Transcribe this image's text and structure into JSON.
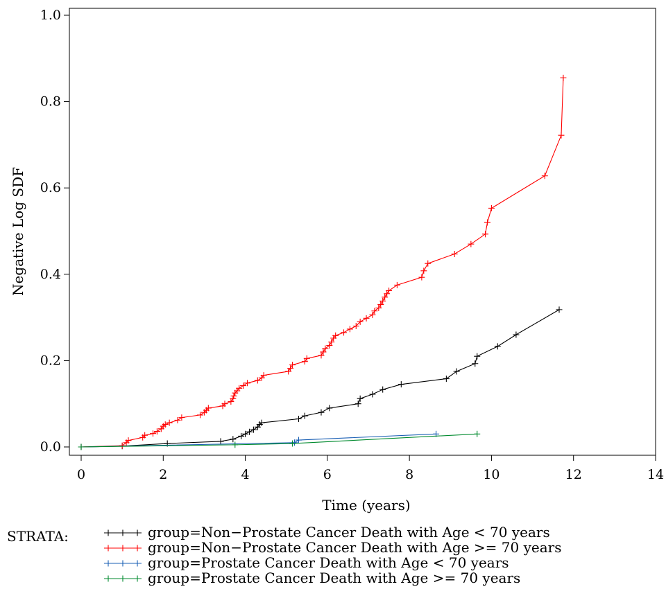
{
  "chart_data": {
    "type": "line",
    "title": "",
    "xlabel": "Time (years)",
    "ylabel": "Negative Log SDF",
    "xlim": [
      0,
      14
    ],
    "ylim": [
      0,
      1.0
    ],
    "x_ticks": [
      0,
      2,
      4,
      6,
      8,
      10,
      12,
      14
    ],
    "y_ticks": [
      0.0,
      0.2,
      0.4,
      0.6,
      0.8,
      1.0
    ],
    "x_tick_labels": [
      "0",
      "2",
      "4",
      "6",
      "8",
      "10",
      "12",
      "14"
    ],
    "y_tick_labels": [
      "0.0",
      "0.2",
      "0.4",
      "0.6",
      "0.8",
      "1.0"
    ],
    "grid": false,
    "legend": {
      "placement": "bottom",
      "title": "STRATA:"
    },
    "series": [
      {
        "name": "group=Non−Prostate Cancer Death with Age < 70 years",
        "color": "#000000",
        "points": [
          [
            0,
            0
          ],
          [
            1.0,
            0.002
          ],
          [
            2.1,
            0.008
          ],
          [
            3.4,
            0.013
          ],
          [
            3.7,
            0.018
          ],
          [
            3.9,
            0.025
          ],
          [
            4.0,
            0.03
          ],
          [
            4.1,
            0.035
          ],
          [
            4.2,
            0.04
          ],
          [
            4.3,
            0.046
          ],
          [
            4.35,
            0.052
          ],
          [
            4.4,
            0.056
          ],
          [
            5.3,
            0.065
          ],
          [
            5.45,
            0.072
          ],
          [
            5.85,
            0.08
          ],
          [
            6.05,
            0.09
          ],
          [
            6.75,
            0.1
          ],
          [
            6.8,
            0.112
          ],
          [
            7.1,
            0.122
          ],
          [
            7.35,
            0.133
          ],
          [
            7.8,
            0.145
          ],
          [
            8.9,
            0.158
          ],
          [
            9.15,
            0.175
          ],
          [
            9.6,
            0.193
          ],
          [
            9.65,
            0.21
          ],
          [
            10.15,
            0.233
          ],
          [
            10.6,
            0.26
          ],
          [
            11.65,
            0.318
          ]
        ]
      },
      {
        "name": "group=Non−Prostate Cancer Death with Age >= 70 years",
        "color": "#ff0000",
        "points": [
          [
            0,
            0
          ],
          [
            1.0,
            0.003
          ],
          [
            1.1,
            0.01
          ],
          [
            1.15,
            0.015
          ],
          [
            1.5,
            0.022
          ],
          [
            1.55,
            0.027
          ],
          [
            1.75,
            0.031
          ],
          [
            1.85,
            0.036
          ],
          [
            1.95,
            0.042
          ],
          [
            2.0,
            0.048
          ],
          [
            2.05,
            0.052
          ],
          [
            2.15,
            0.056
          ],
          [
            2.35,
            0.062
          ],
          [
            2.45,
            0.068
          ],
          [
            2.9,
            0.074
          ],
          [
            3.0,
            0.08
          ],
          [
            3.05,
            0.085
          ],
          [
            3.1,
            0.09
          ],
          [
            3.45,
            0.095
          ],
          [
            3.5,
            0.1
          ],
          [
            3.65,
            0.105
          ],
          [
            3.7,
            0.112
          ],
          [
            3.72,
            0.118
          ],
          [
            3.75,
            0.125
          ],
          [
            3.8,
            0.13
          ],
          [
            3.85,
            0.136
          ],
          [
            3.95,
            0.142
          ],
          [
            4.05,
            0.148
          ],
          [
            4.3,
            0.154
          ],
          [
            4.4,
            0.16
          ],
          [
            4.45,
            0.166
          ],
          [
            5.05,
            0.175
          ],
          [
            5.1,
            0.182
          ],
          [
            5.15,
            0.19
          ],
          [
            5.45,
            0.198
          ],
          [
            5.5,
            0.205
          ],
          [
            5.85,
            0.212
          ],
          [
            5.9,
            0.22
          ],
          [
            5.95,
            0.228
          ],
          [
            6.05,
            0.235
          ],
          [
            6.1,
            0.243
          ],
          [
            6.15,
            0.252
          ],
          [
            6.2,
            0.258
          ],
          [
            6.4,
            0.265
          ],
          [
            6.55,
            0.273
          ],
          [
            6.7,
            0.28
          ],
          [
            6.8,
            0.29
          ],
          [
            6.95,
            0.298
          ],
          [
            7.1,
            0.306
          ],
          [
            7.15,
            0.315
          ],
          [
            7.25,
            0.322
          ],
          [
            7.3,
            0.33
          ],
          [
            7.35,
            0.338
          ],
          [
            7.4,
            0.347
          ],
          [
            7.45,
            0.355
          ],
          [
            7.5,
            0.362
          ],
          [
            7.7,
            0.375
          ],
          [
            8.3,
            0.393
          ],
          [
            8.35,
            0.408
          ],
          [
            8.45,
            0.425
          ],
          [
            9.1,
            0.447
          ],
          [
            9.5,
            0.47
          ],
          [
            9.85,
            0.493
          ],
          [
            9.9,
            0.52
          ],
          [
            10.0,
            0.553
          ],
          [
            11.3,
            0.628
          ],
          [
            11.7,
            0.722
          ],
          [
            11.75,
            0.855
          ]
        ]
      },
      {
        "name": "group=Prostate Cancer Death with Age < 70 years",
        "color": "#1a5fb4",
        "points": [
          [
            0,
            0
          ],
          [
            5.2,
            0.01
          ],
          [
            5.3,
            0.016
          ],
          [
            8.65,
            0.03
          ]
        ]
      },
      {
        "name": "group=Prostate Cancer Death with Age >= 70 years",
        "color": "#008a2e",
        "points": [
          [
            0,
            0
          ],
          [
            3.75,
            0.005
          ],
          [
            5.15,
            0.008
          ],
          [
            9.65,
            0.03
          ]
        ]
      }
    ]
  }
}
